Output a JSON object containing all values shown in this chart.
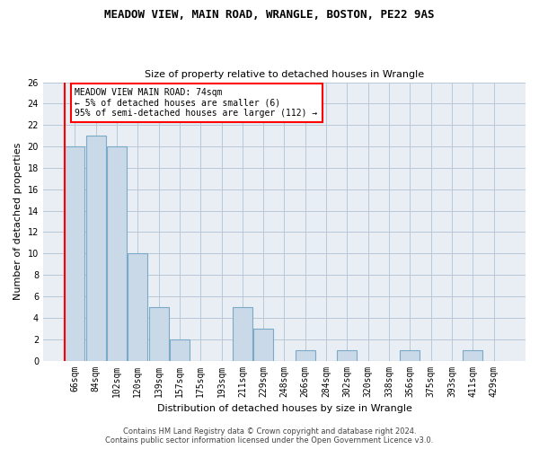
{
  "title": "MEADOW VIEW, MAIN ROAD, WRANGLE, BOSTON, PE22 9AS",
  "subtitle": "Size of property relative to detached houses in Wrangle",
  "xlabel": "Distribution of detached houses by size in Wrangle",
  "ylabel": "Number of detached properties",
  "categories": [
    "66sqm",
    "84sqm",
    "102sqm",
    "120sqm",
    "139sqm",
    "157sqm",
    "175sqm",
    "193sqm",
    "211sqm",
    "229sqm",
    "248sqm",
    "266sqm",
    "284sqm",
    "302sqm",
    "320sqm",
    "338sqm",
    "356sqm",
    "375sqm",
    "393sqm",
    "411sqm",
    "429sqm"
  ],
  "values": [
    20,
    21,
    20,
    10,
    5,
    2,
    0,
    0,
    5,
    3,
    0,
    1,
    0,
    1,
    0,
    0,
    1,
    0,
    0,
    1,
    0
  ],
  "bar_color": "#c9d9e8",
  "bar_edge_color": "#7aaac8",
  "annotation_box_text": "MEADOW VIEW MAIN ROAD: 74sqm\n← 5% of detached houses are smaller (6)\n95% of semi-detached houses are larger (112) →",
  "vline_color": "red",
  "ylim": [
    0,
    26
  ],
  "yticks": [
    0,
    2,
    4,
    6,
    8,
    10,
    12,
    14,
    16,
    18,
    20,
    22,
    24,
    26
  ],
  "footer_line1": "Contains HM Land Registry data © Crown copyright and database right 2024.",
  "footer_line2": "Contains public sector information licensed under the Open Government Licence v3.0.",
  "bg_color": "#e8eef4",
  "grid_color": "#b8c8d8",
  "title_fontsize": 9,
  "subtitle_fontsize": 8,
  "ylabel_fontsize": 8,
  "xlabel_fontsize": 8,
  "tick_fontsize": 7,
  "footer_fontsize": 6
}
